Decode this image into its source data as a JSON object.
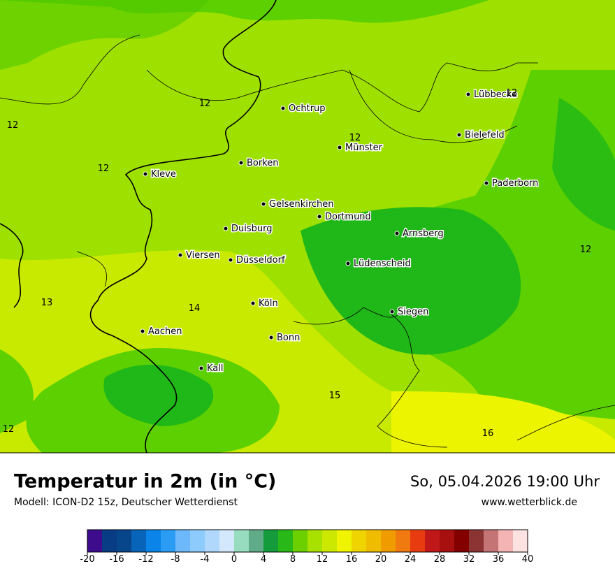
{
  "header": {
    "title": "Temperatur in 2m (in °C)",
    "subtitle": "Modell: ICON-D2 15z, Deutscher Wetterdienst",
    "datetime": "So, 05.04.2026 19:00 Uhr",
    "website": "www.wetterblick.de"
  },
  "cities": [
    "Ochtrup",
    "Münster",
    "Lübbecke",
    "Bielefeld",
    "Paderborn",
    "Borken",
    "Kleve",
    "Gelsenkirchen",
    "Dortmund",
    "Duisburg",
    "Arnsberg",
    "Viersen",
    "Düsseldorf",
    "Lüdenscheid",
    "Köln",
    "Siegen",
    "Aachen",
    "Bonn",
    "Kall"
  ],
  "contour_labels": [
    12,
    12,
    12,
    12,
    12,
    12,
    13,
    14,
    15,
    16,
    12
  ],
  "colorbar": {
    "bounds": [
      -20,
      -18,
      -16,
      -14,
      -12,
      -10,
      -8,
      -6,
      -4,
      -2,
      0,
      2,
      4,
      6,
      8,
      10,
      12,
      14,
      16,
      18,
      20,
      22,
      24,
      26,
      28,
      30,
      32,
      34,
      36,
      38,
      40
    ],
    "colors": [
      "#3c0c8c",
      "#083c84",
      "#08468c",
      "#0864b8",
      "#0a84e8",
      "#2a9cf4",
      "#6cb8fa",
      "#8ccbfb",
      "#b0d8fc",
      "#d4e8fd",
      "#98dcc0",
      "#60ac88",
      "#149c3c",
      "#28b818",
      "#6cd000",
      "#a8e000",
      "#cce800",
      "#f0f400",
      "#f0d400",
      "#f0bc00",
      "#f09c00",
      "#f07a10",
      "#e83c10",
      "#c01818",
      "#a81010",
      "#840000",
      "#8c3434",
      "#c47474",
      "#f4b4b4",
      "#fde2e2"
    ],
    "ticks": [
      -20,
      -16,
      -12,
      -8,
      -4,
      0,
      4,
      8,
      12,
      16,
      20,
      24,
      28,
      32,
      36,
      40
    ]
  }
}
